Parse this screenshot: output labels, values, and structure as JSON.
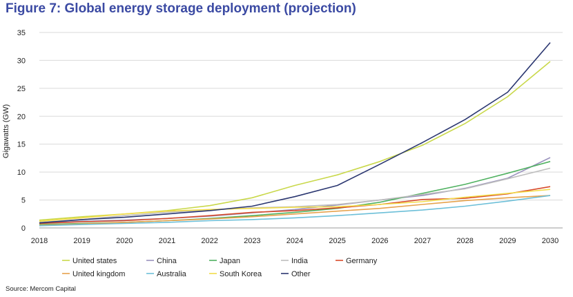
{
  "title": "Figure 7: Global energy storage deployment (projection)",
  "source": "Source: Mercom Capital",
  "chart_data": {
    "type": "line",
    "title": "Figure 7: Global energy storage deployment (projection)",
    "xlabel": "",
    "ylabel": "Gigawatts (GW)",
    "ylim": [
      0,
      35
    ],
    "yticks": [
      0,
      5,
      10,
      15,
      20,
      25,
      30,
      35
    ],
    "x": [
      "2018",
      "2019",
      "2020",
      "2021",
      "2022",
      "2023",
      "2024",
      "2025",
      "2026",
      "2027",
      "2028",
      "2029",
      "2030"
    ],
    "grid": "horizontal",
    "legend": "bottom",
    "series": [
      {
        "name": "United states",
        "color": "#c9d84a",
        "values": [
          1.4,
          2.0,
          2.5,
          3.1,
          4.0,
          5.4,
          7.6,
          9.5,
          11.9,
          14.8,
          18.7,
          23.5,
          29.8
        ]
      },
      {
        "name": "China",
        "color": "#9a93bd",
        "values": [
          0.9,
          1.2,
          1.4,
          1.7,
          2.1,
          2.7,
          3.3,
          4.1,
          5.0,
          5.8,
          7.1,
          8.9,
          12.6
        ]
      },
      {
        "name": "Japan",
        "color": "#4fb160",
        "values": [
          0.6,
          0.8,
          1.0,
          1.3,
          1.7,
          2.2,
          2.8,
          3.5,
          4.6,
          6.2,
          7.8,
          9.8,
          11.9
        ]
      },
      {
        "name": "India",
        "color": "#bdbdbd",
        "values": [
          1.0,
          1.5,
          2.2,
          2.8,
          3.2,
          3.6,
          3.8,
          4.2,
          5.0,
          6.0,
          7.0,
          8.8,
          10.7
        ]
      },
      {
        "name": "Germany",
        "color": "#d84a2a",
        "values": [
          0.8,
          1.1,
          1.3,
          1.7,
          2.2,
          2.8,
          3.1,
          3.6,
          4.2,
          5.1,
          5.3,
          6.1,
          7.4
        ]
      },
      {
        "name": "United kingdom",
        "color": "#e6a24c",
        "values": [
          0.5,
          0.7,
          1.0,
          1.3,
          1.6,
          2.0,
          2.5,
          3.0,
          3.5,
          4.2,
          4.9,
          5.4,
          5.8
        ]
      },
      {
        "name": "Australia",
        "color": "#6cbfd8",
        "values": [
          0.4,
          0.6,
          0.8,
          1.0,
          1.3,
          1.5,
          1.8,
          2.2,
          2.7,
          3.2,
          3.9,
          4.8,
          5.8
        ]
      },
      {
        "name": "South Korea",
        "color": "#f2dc4a",
        "values": [
          1.2,
          1.8,
          2.5,
          3.0,
          3.3,
          3.5,
          3.7,
          3.8,
          4.2,
          4.7,
          5.5,
          6.2,
          6.9
        ]
      },
      {
        "name": "Other",
        "color": "#2a3670",
        "values": [
          0.9,
          1.5,
          1.9,
          2.5,
          3.1,
          3.9,
          5.6,
          7.6,
          11.4,
          15.3,
          19.4,
          24.3,
          33.2
        ]
      }
    ]
  }
}
